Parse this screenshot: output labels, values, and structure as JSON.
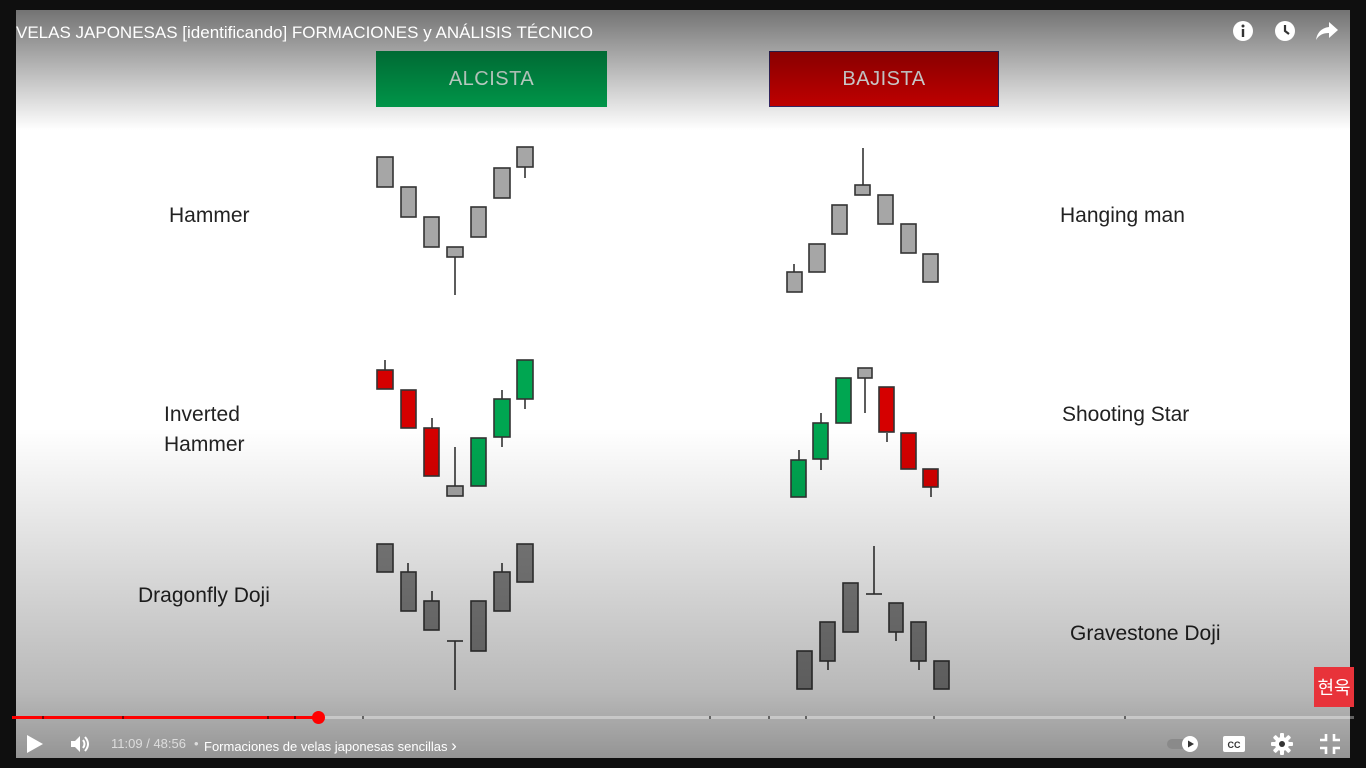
{
  "video": {
    "title": "VELAS JAPONESAS [identificando] FORMACIONES y ANÁLISIS TÉCNICO",
    "top_icons": [
      "info-icon",
      "clock-icon",
      "share-icon"
    ]
  },
  "slide": {
    "bullish_label": "ALCISTA",
    "bearish_label": "BAJISTA",
    "patterns": {
      "hammer": "Hammer",
      "inverted_hammer_1": "Inverted",
      "inverted_hammer_2": "Hammer",
      "dragonfly": "Dragonfly Doji",
      "hanging_man": "Hanging man",
      "shooting_star": "Shooting Star",
      "gravestone": "Gravestone Doji"
    },
    "colors": {
      "bullish": "#00a651",
      "bearish": "#d50000",
      "neutral_light": "#a6a6a6",
      "neutral_dark": "#808080"
    }
  },
  "watermark": {
    "text": "현욱"
  },
  "player": {
    "current_time": "11:09",
    "separator": "/",
    "duration": "48:56",
    "progress_fraction": 0.228,
    "chapter_bullet": "•",
    "chapter": "Formaciones de velas japonesas sencillas",
    "chapter_arrow": "›",
    "buttons": [
      "play-icon",
      "volume-icon",
      "autoplay-toggle",
      "cc-icon",
      "settings-icon",
      "exit-fullscreen-icon"
    ]
  }
}
